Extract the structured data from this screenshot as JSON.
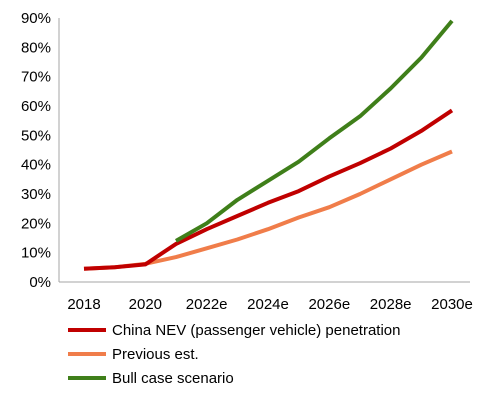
{
  "chart_data": {
    "type": "line",
    "x": [
      "2018",
      "2019",
      "2020",
      "2021",
      "2022e",
      "2023e",
      "2024e",
      "2025e",
      "2026e",
      "2027e",
      "2028e",
      "2029e",
      "2030e"
    ],
    "x_tick_labels": [
      "2018",
      "2020",
      "2022e",
      "2024e",
      "2026e",
      "2028e",
      "2030e"
    ],
    "ylim": [
      0,
      90
    ],
    "y_tick_labels": [
      "0%",
      "10%",
      "20%",
      "30%",
      "40%",
      "50%",
      "60%",
      "70%",
      "80%",
      "90%"
    ],
    "y_unit": "%",
    "grid": false,
    "legend_position": "bottom",
    "series": [
      {
        "name": "China NEV (passenger vehicle) penetration",
        "color": "#c00000",
        "values": [
          4.5,
          5,
          6,
          13,
          18,
          22.5,
          27,
          31,
          36,
          40.5,
          45.5,
          51.5,
          58.5
        ]
      },
      {
        "name": "Previous est.",
        "color": "#f07d4a",
        "values": [
          4.5,
          5,
          6.2,
          8.5,
          11.5,
          14.5,
          18,
          22,
          25.5,
          30,
          35,
          40,
          44.5
        ]
      },
      {
        "name": "Bull case scenario",
        "color": "#3f7f1a",
        "values": [
          null,
          null,
          null,
          14,
          20,
          28,
          34.5,
          41,
          49,
          56.5,
          66,
          76.5,
          89
        ]
      }
    ]
  }
}
